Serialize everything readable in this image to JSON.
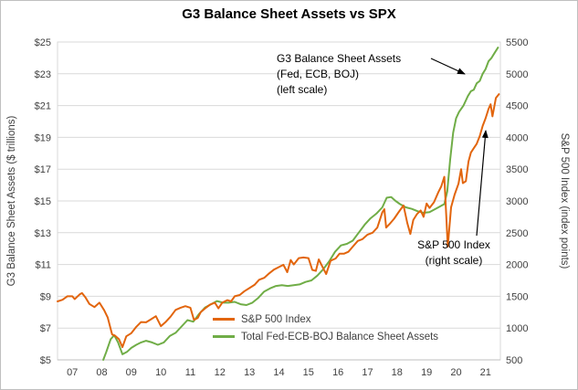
{
  "colors": {
    "background": "#FFFFFF",
    "grid": "#D9D9D9",
    "axis_line": "#BFBFBF",
    "axis_text": "#404040",
    "title_text": "#000000",
    "annotation_text": "#000000",
    "arrow": "#000000",
    "sp500_line": "#E2650D",
    "g3_line": "#70AD47"
  },
  "chart_data": {
    "type": "line",
    "title": "G3 Balance Sheet Assets vs SPX",
    "grid": true,
    "x_axis": {
      "min": 2007,
      "max": 2022,
      "tick_labels": [
        "07",
        "08",
        "09",
        "10",
        "11",
        "12",
        "13",
        "14",
        "15",
        "16",
        "17",
        "18",
        "19",
        "20",
        "21"
      ]
    },
    "left_axis": {
      "label": "G3 Balance Sheet Assets ($ trillions)",
      "min": 5,
      "max": 25,
      "tick_labels": [
        "$5",
        "$7",
        "$9",
        "$11",
        "$13",
        "$15",
        "$17",
        "$19",
        "$21",
        "$23",
        "$25"
      ]
    },
    "right_axis": {
      "label": "S&P 500 Index (index points)",
      "min": 500,
      "max": 5500,
      "tick_labels": [
        "500",
        "1000",
        "1500",
        "2000",
        "2500",
        "3000",
        "3500",
        "4000",
        "4500",
        "5000",
        "5500"
      ]
    },
    "legend": {
      "position": "inside-bottom-center"
    },
    "series": [
      {
        "name": "S&P 500 Index",
        "axis": "right",
        "color": "#E2650D",
        "x": [
          2007.0,
          2007.17,
          2007.33,
          2007.5,
          2007.58,
          2007.75,
          2007.83,
          2007.95,
          2008.08,
          2008.25,
          2008.42,
          2008.58,
          2008.7,
          2008.85,
          2008.95,
          2009.08,
          2009.2,
          2009.33,
          2009.5,
          2009.67,
          2009.83,
          2010.0,
          2010.17,
          2010.33,
          2010.5,
          2010.67,
          2010.83,
          2011.0,
          2011.17,
          2011.33,
          2011.5,
          2011.62,
          2011.75,
          2011.85,
          2012.0,
          2012.17,
          2012.33,
          2012.45,
          2012.58,
          2012.75,
          2012.88,
          2013.0,
          2013.17,
          2013.33,
          2013.5,
          2013.67,
          2013.83,
          2014.0,
          2014.17,
          2014.33,
          2014.5,
          2014.65,
          2014.78,
          2014.9,
          2015.0,
          2015.17,
          2015.33,
          2015.5,
          2015.63,
          2015.75,
          2015.85,
          2016.0,
          2016.1,
          2016.25,
          2016.42,
          2016.55,
          2016.7,
          2016.85,
          2017.0,
          2017.17,
          2017.33,
          2017.5,
          2017.67,
          2017.83,
          2018.0,
          2018.07,
          2018.13,
          2018.25,
          2018.4,
          2018.55,
          2018.72,
          2018.85,
          2018.95,
          2019.05,
          2019.17,
          2019.3,
          2019.4,
          2019.5,
          2019.6,
          2019.75,
          2019.9,
          2020.0,
          2020.1,
          2020.22,
          2020.33,
          2020.45,
          2020.58,
          2020.67,
          2020.73,
          2020.83,
          2020.92,
          2021.0,
          2021.1,
          2021.2,
          2021.3,
          2021.4,
          2021.5,
          2021.6,
          2021.67,
          2021.73,
          2021.85,
          2021.95
        ],
        "values": [
          1420,
          1445,
          1500,
          1500,
          1455,
          1530,
          1550,
          1480,
          1380,
          1330,
          1400,
          1280,
          1165,
          900,
          880,
          825,
          700,
          870,
          920,
          1020,
          1095,
          1090,
          1140,
          1187,
          1030,
          1100,
          1180,
          1286,
          1320,
          1345,
          1320,
          1130,
          1160,
          1250,
          1310,
          1370,
          1400,
          1310,
          1400,
          1440,
          1420,
          1500,
          1520,
          1580,
          1630,
          1680,
          1760,
          1790,
          1860,
          1920,
          1960,
          1995,
          1880,
          2070,
          2000,
          2100,
          2110,
          2100,
          1915,
          1900,
          2080,
          1940,
          1850,
          2060,
          2095,
          2170,
          2170,
          2200,
          2280,
          2370,
          2400,
          2470,
          2500,
          2580,
          2820,
          2870,
          2580,
          2640,
          2720,
          2820,
          2930,
          2650,
          2480,
          2700,
          2790,
          2850,
          2750,
          2960,
          2890,
          2980,
          3140,
          3230,
          3380,
          2280,
          2900,
          3100,
          3270,
          3500,
          3280,
          3310,
          3620,
          3760,
          3830,
          3900,
          4020,
          4180,
          4300,
          4450,
          4520,
          4330,
          4620,
          4680
        ]
      },
      {
        "name": "Total Fed-ECB-BOJ Balance Sheet Assets",
        "axis": "left",
        "color": "#70AD47",
        "x": [
          2008.55,
          2008.65,
          2008.8,
          2008.92,
          2009.05,
          2009.2,
          2009.35,
          2009.5,
          2009.67,
          2009.83,
          2010.0,
          2010.2,
          2010.4,
          2010.6,
          2010.8,
          2011.0,
          2011.2,
          2011.4,
          2011.6,
          2011.8,
          2012.0,
          2012.2,
          2012.4,
          2012.6,
          2012.8,
          2013.0,
          2013.2,
          2013.4,
          2013.6,
          2013.8,
          2014.0,
          2014.2,
          2014.4,
          2014.6,
          2014.8,
          2015.0,
          2015.2,
          2015.4,
          2015.6,
          2015.8,
          2016.0,
          2016.2,
          2016.4,
          2016.6,
          2016.8,
          2017.0,
          2017.2,
          2017.4,
          2017.6,
          2017.8,
          2018.0,
          2018.15,
          2018.3,
          2018.45,
          2018.6,
          2018.8,
          2019.0,
          2019.2,
          2019.4,
          2019.6,
          2019.8,
          2020.0,
          2020.1,
          2020.2,
          2020.3,
          2020.4,
          2020.5,
          2020.6,
          2020.75,
          2020.9,
          2021.0,
          2021.1,
          2021.2,
          2021.3,
          2021.4,
          2021.5,
          2021.6,
          2021.7,
          2021.8,
          2021.92
        ],
        "values": [
          5.0,
          5.5,
          6.3,
          6.55,
          6.1,
          5.35,
          5.5,
          5.75,
          5.95,
          6.1,
          6.2,
          6.1,
          5.95,
          6.1,
          6.5,
          6.7,
          7.1,
          7.5,
          7.4,
          7.9,
          8.3,
          8.5,
          8.7,
          8.6,
          8.6,
          8.65,
          8.5,
          8.45,
          8.6,
          8.9,
          9.3,
          9.5,
          9.65,
          9.7,
          9.65,
          9.7,
          9.75,
          9.9,
          10.0,
          10.3,
          10.7,
          11.2,
          11.8,
          12.2,
          12.3,
          12.5,
          13.0,
          13.5,
          13.9,
          14.2,
          14.6,
          15.2,
          15.25,
          15.0,
          14.8,
          14.6,
          14.5,
          14.35,
          14.25,
          14.3,
          14.5,
          14.7,
          14.8,
          15.6,
          17.6,
          19.3,
          20.2,
          20.6,
          21.0,
          21.6,
          21.9,
          22.0,
          22.4,
          22.55,
          23.0,
          23.3,
          23.8,
          24.0,
          24.3,
          24.65
        ]
      }
    ],
    "annotations": [
      {
        "target": "g3-series",
        "lines": [
          "G3 Balance Sheet Assets",
          "(Fed, ECB, BOJ)",
          "(left scale)"
        ]
      },
      {
        "target": "sp500-series",
        "lines": [
          "S&P 500 Index",
          "(right scale)"
        ]
      }
    ]
  }
}
